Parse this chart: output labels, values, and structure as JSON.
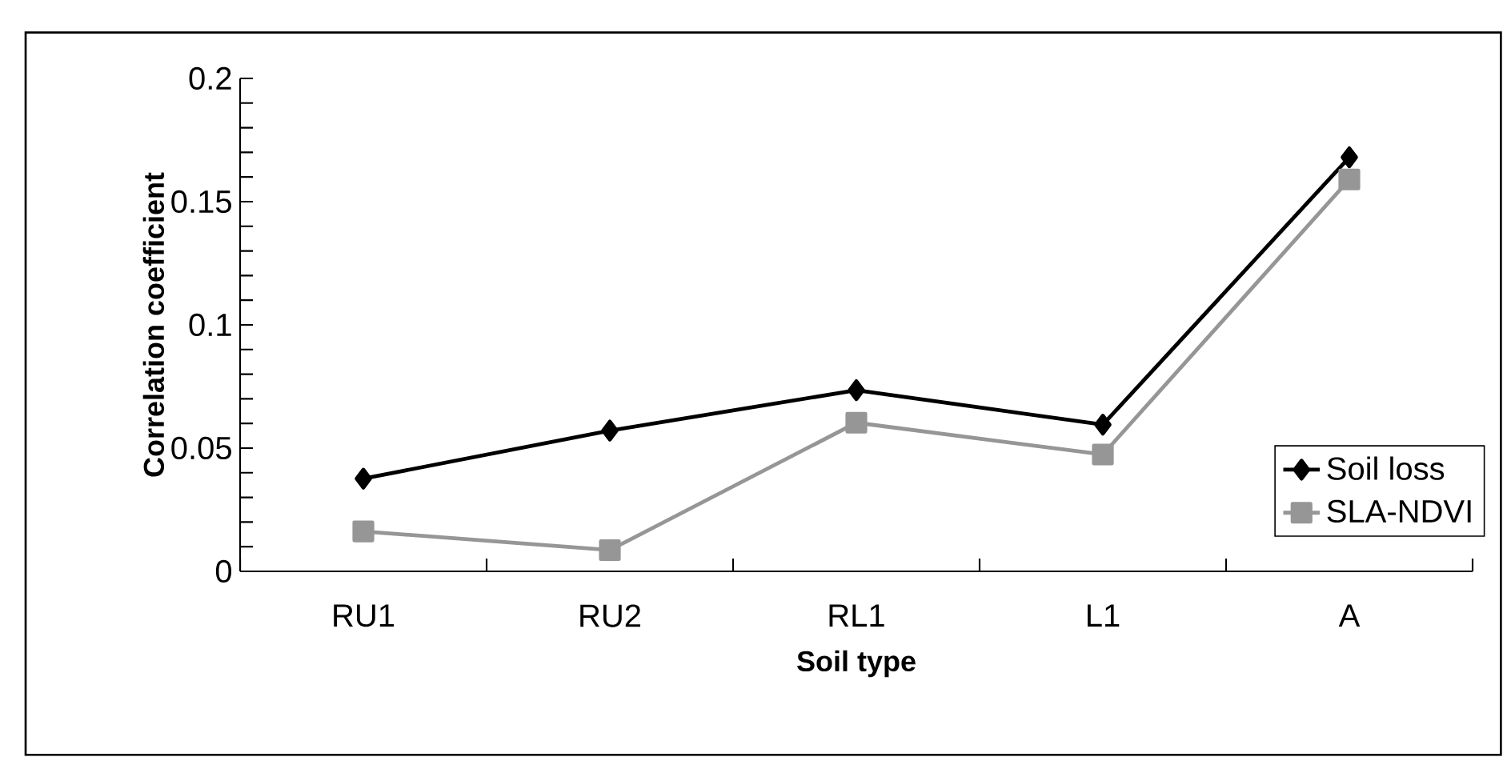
{
  "chart_data": {
    "type": "line",
    "xlabel": "Soil type",
    "ylabel": "Correlation coefficient",
    "categories": [
      "RU1",
      "RU2",
      "RL1",
      "L1",
      "A"
    ],
    "series": [
      {
        "name": "Soil loss",
        "color": "#000000",
        "marker": "diamond",
        "values": [
          0.0376,
          0.0571,
          0.0735,
          0.0595,
          0.168
        ]
      },
      {
        "name": "SLA-NDVI",
        "color": "#969696",
        "marker": "square",
        "values": [
          0.0162,
          0.0086,
          0.0603,
          0.0474,
          0.159
        ]
      }
    ],
    "ylim": [
      0,
      0.2
    ],
    "yticks": [
      0,
      0.05,
      0.1,
      0.15,
      0.2
    ],
    "grid": false,
    "legend": "bottom right",
    "line_style": "solid"
  }
}
